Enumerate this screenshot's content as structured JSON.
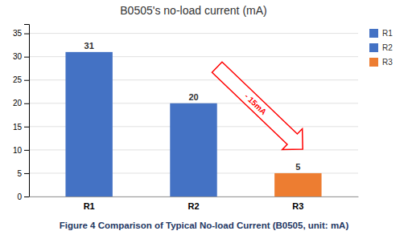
{
  "chart_data": {
    "type": "bar",
    "title": "B0505's no-load current (mA)",
    "categories": [
      "R1",
      "R2",
      "R3"
    ],
    "values": [
      31,
      20,
      5
    ],
    "colors": [
      "#4472C4",
      "#4472C4",
      "#ED7D31"
    ],
    "data_labels": true,
    "ylim": [
      0,
      37
    ],
    "yticks": [
      0,
      5,
      10,
      15,
      20,
      25,
      30,
      35
    ],
    "grid": true,
    "legend": "upper right",
    "annotations": [
      {
        "text": "- 15mA",
        "color": "#FF0000"
      }
    ],
    "caption": "Figure 4 Comparison of Typical No-load Current (B0505, unit: mA)"
  }
}
